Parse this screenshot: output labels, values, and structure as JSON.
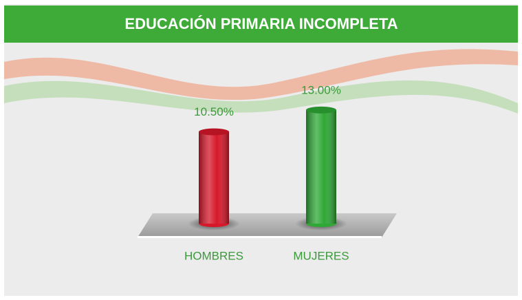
{
  "chart_data": {
    "type": "bar",
    "title": "EDUCACIÓN PRIMARIA INCOMPLETA",
    "categories": [
      "HOMBRES",
      "MUJERES"
    ],
    "values": [
      10.5,
      13.0
    ],
    "value_labels": [
      "10.50%",
      "13.00%"
    ],
    "colors": [
      "#d7182a",
      "#2fa836"
    ]
  }
}
